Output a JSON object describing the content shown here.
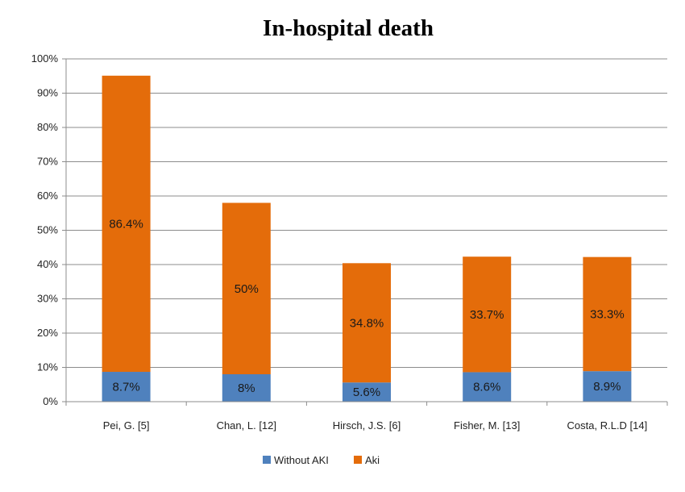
{
  "chart_data": {
    "type": "bar",
    "stacked": true,
    "title": "In-hospital death",
    "xlabel": "",
    "ylabel": "",
    "categories": [
      "Pei, G. [5]",
      "Chan, L. [12]",
      "Hirsch, J.S. [6]",
      "Fisher, M. [13]",
      "Costa, R.L.D [14]"
    ],
    "series": [
      {
        "name": "Without AKI",
        "color": "#4f81bd",
        "values": [
          8.7,
          8,
          5.6,
          8.6,
          8.9
        ],
        "labels": [
          "8.7%",
          "8%",
          "5.6%",
          "8.6%",
          "8.9%"
        ]
      },
      {
        "name": "Aki",
        "color": "#e46c0a",
        "values": [
          86.4,
          50,
          34.8,
          33.7,
          33.3
        ],
        "labels": [
          "86.4%",
          "50%",
          "34.8%",
          "33.7%",
          "33.3%"
        ]
      }
    ],
    "ylim": [
      0,
      100
    ],
    "yticks": [
      "0%",
      "10%",
      "20%",
      "30%",
      "40%",
      "50%",
      "60%",
      "70%",
      "80%",
      "90%",
      "100%"
    ],
    "grid": true,
    "legend_position": "bottom"
  }
}
